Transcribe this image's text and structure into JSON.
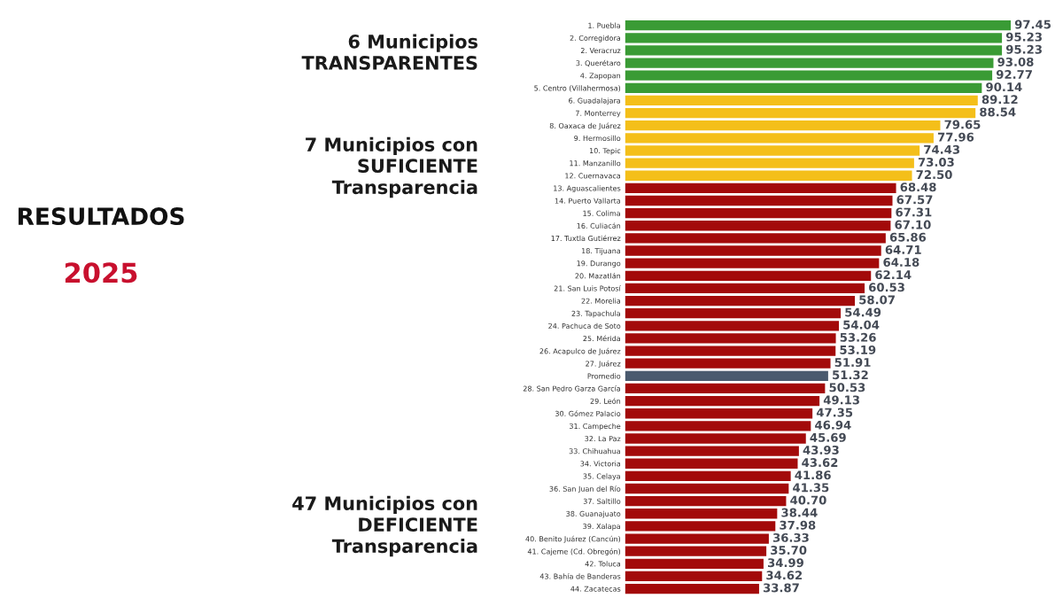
{
  "chart_data": {
    "type": "bar",
    "orientation": "horizontal",
    "title": "RESULTADOS",
    "subtitle": "2025",
    "categories": [
      "1. Puebla",
      "2. Corregidora",
      "2. Veracruz",
      "3. Querétaro",
      "4. Zapopan",
      "5. Centro (Villahermosa)",
      "6. Guadalajara",
      "7. Monterrey",
      "8. Oaxaca de Juárez",
      "9. Hermosillo",
      "10. Tepic",
      "11. Manzanillo",
      "12. Cuernavaca",
      "13. Aguascalientes",
      "14. Puerto Vallarta",
      "15. Colima",
      "16. Culiacán",
      "17. Tuxtla Gutiérrez",
      "18. Tijuana",
      "19. Durango",
      "20. Mazatlán",
      "21. San Luis Potosí",
      "22. Morelia",
      "23. Tapachula",
      "24. Pachuca de Soto",
      "25. Mérida",
      "26. Acapulco de Juárez",
      "27. Juárez",
      "Promedio",
      "28. San Pedro Garza García",
      "29. León",
      "30. Gómez Palacio",
      "31. Campeche",
      "32. La Paz",
      "33. Chihuahua",
      "34. Victoria",
      "35. Celaya",
      "36. San Juan del Río",
      "37. Saltillo",
      "38. Guanajuato",
      "39. Xalapa",
      "40. Benito Juárez (Cancún)",
      "41. Cajeme (Cd. Obregón)",
      "42. Toluca",
      "43. Bahía de Banderas",
      "44. Zacatecas"
    ],
    "values": [
      97.45,
      95.23,
      95.23,
      93.08,
      92.77,
      90.14,
      89.12,
      88.54,
      79.65,
      77.96,
      74.43,
      73.03,
      72.5,
      68.48,
      67.57,
      67.31,
      67.1,
      65.86,
      64.71,
      64.18,
      62.14,
      60.53,
      58.07,
      54.49,
      54.04,
      53.26,
      53.19,
      51.91,
      51.32,
      50.53,
      49.13,
      47.35,
      46.94,
      45.69,
      43.93,
      43.62,
      41.86,
      41.35,
      40.7,
      38.44,
      37.98,
      36.33,
      35.7,
      34.99,
      34.62,
      33.87
    ],
    "colors": [
      "#3a9b35",
      "#3a9b35",
      "#3a9b35",
      "#3a9b35",
      "#3a9b35",
      "#3a9b35",
      "#f4bf1a",
      "#f4bf1a",
      "#f4bf1a",
      "#f4bf1a",
      "#f4bf1a",
      "#f4bf1a",
      "#f4bf1a",
      "#a30a0a",
      "#a30a0a",
      "#a30a0a",
      "#a30a0a",
      "#a30a0a",
      "#a30a0a",
      "#a30a0a",
      "#a30a0a",
      "#a30a0a",
      "#a30a0a",
      "#a30a0a",
      "#a30a0a",
      "#a30a0a",
      "#a30a0a",
      "#a30a0a",
      "#4a5a6e",
      "#a30a0a",
      "#a30a0a",
      "#a30a0a",
      "#a30a0a",
      "#a30a0a",
      "#a30a0a",
      "#a30a0a",
      "#a30a0a",
      "#a30a0a",
      "#a30a0a",
      "#a30a0a",
      "#a30a0a",
      "#a30a0a",
      "#a30a0a",
      "#a30a0a",
      "#a30a0a",
      "#a30a0a"
    ],
    "value_labels": [
      "97.45",
      "95.23",
      "95.23",
      "93.08",
      "92.77",
      "90.14",
      "89.12",
      "88.54",
      "79.65",
      "77.96",
      "74.43",
      "73.03",
      "72.50",
      "68.48",
      "67.57",
      "67.31",
      "67.10",
      "65.86",
      "64.71",
      "64.18",
      "62.14",
      "60.53",
      "58.07",
      "54.49",
      "54.04",
      "53.26",
      "53.19",
      "51.91",
      "51.32",
      "50.53",
      "49.13",
      "47.35",
      "46.94",
      "45.69",
      "43.93",
      "43.62",
      "41.86",
      "41.35",
      "40.70",
      "38.44",
      "37.98",
      "36.33",
      "35.70",
      "34.99",
      "34.62",
      "33.87"
    ],
    "tick_labels": "y",
    "annotations": [
      "6 Municipios\nTRANSPARENTES",
      "7 Municipios con\nSUFICIENTE\nTransparencia",
      "47 Municipios con\nDEFICIENTE\nTransparencia"
    ]
  }
}
